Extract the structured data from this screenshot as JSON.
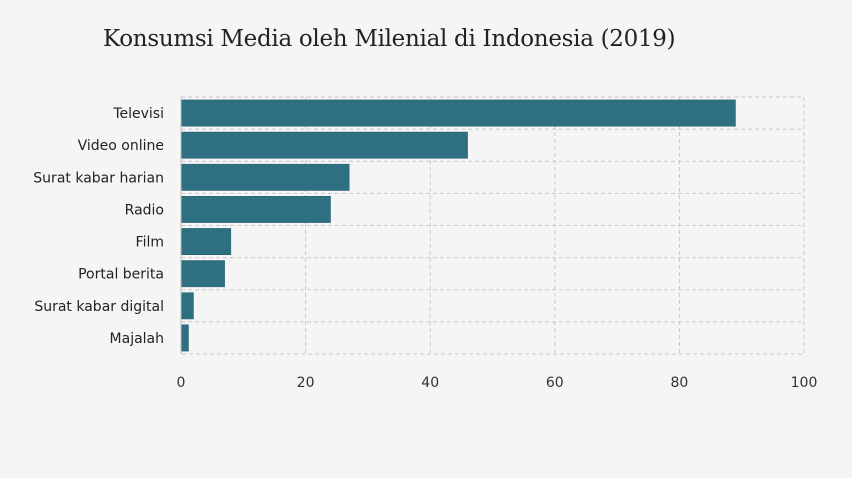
{
  "chart_data": {
    "type": "bar",
    "orientation": "horizontal",
    "title": "Konsumsi Media oleh Milenial di Indonesia (2019)",
    "categories": [
      "Televisi",
      "Video online",
      "Surat kabar harian",
      "Radio",
      "Film",
      "Portal berita",
      "Surat kabar digital",
      "Majalah"
    ],
    "values": [
      89,
      46,
      27,
      24,
      8,
      7,
      2,
      1.2
    ],
    "xlim": [
      0,
      100
    ],
    "xticks": [
      "0",
      "20",
      "40",
      "60",
      "80",
      "100"
    ],
    "grid": true,
    "bar_color": "#2e7082"
  }
}
